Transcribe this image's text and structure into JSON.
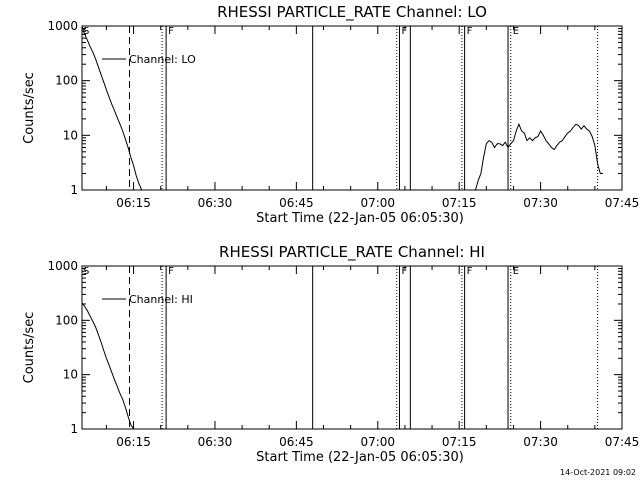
{
  "chart_data": [
    {
      "type": "line",
      "title": "RHESSI PARTICLE_RATE Channel: LO",
      "xlabel": "Start Time (22-Jan-05 06:05:30)",
      "ylabel": "Counts/sec",
      "x_ticks": [
        "06:15",
        "06:30",
        "06:45",
        "07:00",
        "07:15",
        "07:30",
        "07:45"
      ],
      "y_ticks": [
        "1",
        "10",
        "100",
        "1000"
      ],
      "y_scale": "log",
      "xlim": [
        "06:05:30",
        "07:45:00"
      ],
      "ylim": [
        1,
        1000
      ],
      "legend": "Channel: LO",
      "legend_position": "top-left",
      "series": [
        {
          "name": "Channel: LO",
          "segments": [
            {
              "x": [
                "06:05:30",
                "06:06:00",
                "06:06:30",
                "06:07:00",
                "06:07:30",
                "06:08:00",
                "06:08:30",
                "06:09:00",
                "06:09:30",
                "06:10:00",
                "06:10:30",
                "06:11:00",
                "06:11:30",
                "06:12:00",
                "06:12:30",
                "06:13:00",
                "06:13:30",
                "06:14:00",
                "06:14:30",
                "06:15:00",
                "06:15:30",
                "06:16:00",
                "06:16:30"
              ],
              "y": [
                1000,
                700,
                550,
                420,
                330,
                250,
                180,
                130,
                95,
                68,
                50,
                37,
                28,
                21,
                16,
                12,
                8.5,
                6,
                4,
                2.8,
                1.8,
                1.3,
                1
              ]
            },
            {
              "x": [
                "07:18:00",
                "07:18:30",
                "07:19:00",
                "07:19:30",
                "07:20:00",
                "07:20:30",
                "07:21:00",
                "07:21:30",
                "07:22:00",
                "07:22:30",
                "07:23:00",
                "07:23:30",
                "07:24:00",
                "07:24:30",
                "07:25:00",
                "07:25:30",
                "07:26:00",
                "07:26:30",
                "07:27:00",
                "07:27:30",
                "07:28:00",
                "07:28:30",
                "07:29:00",
                "07:29:30",
                "07:30:00",
                "07:30:30",
                "07:31:00",
                "07:31:30",
                "07:32:00",
                "07:32:30",
                "07:33:00",
                "07:33:30",
                "07:34:00",
                "07:34:30",
                "07:35:00",
                "07:35:30",
                "07:36:00",
                "07:36:30",
                "07:37:00",
                "07:37:30",
                "07:38:00",
                "07:38:30",
                "07:39:00",
                "07:39:30",
                "07:40:00",
                "07:40:30",
                "07:41:00",
                "07:41:30"
              ],
              "y": [
                1,
                1.5,
                2,
                4,
                7,
                8,
                7.5,
                6,
                7,
                7,
                6.5,
                7.5,
                6,
                7,
                8,
                12,
                16,
                12,
                11,
                8,
                9,
                8,
                9,
                9.5,
                12,
                10,
                8,
                7,
                6,
                5.5,
                6.5,
                7.5,
                8,
                9.5,
                11,
                12,
                14,
                16,
                15,
                13,
                15,
                13,
                12,
                9.5,
                6.5,
                3,
                2,
                2
              ]
            }
          ]
        }
      ],
      "markers": [
        {
          "type": "vline",
          "style": "dashed",
          "x": "06:14:15"
        },
        {
          "type": "vline",
          "style": "dotted",
          "x": "06:20:15"
        },
        {
          "type": "vline",
          "style": "solid",
          "x": "06:21:00",
          "label": "F"
        },
        {
          "type": "vline",
          "style": "solid",
          "x": "06:48:00"
        },
        {
          "type": "vline",
          "style": "dotted",
          "x": "07:03:30"
        },
        {
          "type": "vline",
          "style": "solid",
          "x": "07:04:00",
          "label": "F"
        },
        {
          "type": "vline",
          "style": "solid",
          "x": "07:06:00"
        },
        {
          "type": "vline",
          "style": "dotted",
          "x": "07:15:30"
        },
        {
          "type": "vline",
          "style": "solid",
          "x": "07:16:00",
          "label": "F"
        },
        {
          "type": "vline",
          "style": "solid",
          "x": "07:24:00"
        },
        {
          "type": "vline",
          "style": "dotted",
          "x": "07:24:30",
          "label": "E"
        },
        {
          "type": "vline",
          "style": "dotted",
          "x": "07:40:30"
        },
        {
          "type": "label",
          "x": "06:05:30",
          "text": "S"
        }
      ]
    },
    {
      "type": "line",
      "title": "RHESSI PARTICLE_RATE Channel: HI",
      "xlabel": "Start Time (22-Jan-05 06:05:30)",
      "ylabel": "Counts/sec",
      "x_ticks": [
        "06:15",
        "06:30",
        "06:45",
        "07:00",
        "07:15",
        "07:30",
        "07:45"
      ],
      "y_ticks": [
        "1",
        "10",
        "100",
        "1000"
      ],
      "y_scale": "log",
      "xlim": [
        "06:05:30",
        "07:45:00"
      ],
      "ylim": [
        1,
        1000
      ],
      "legend": "Channel: HI",
      "legend_position": "top-left",
      "series": [
        {
          "name": "Channel: HI",
          "segments": [
            {
              "x": [
                "06:05:30",
                "06:06:00",
                "06:06:30",
                "06:07:00",
                "06:07:30",
                "06:08:00",
                "06:08:30",
                "06:09:00",
                "06:09:30",
                "06:10:00",
                "06:10:30",
                "06:11:00",
                "06:11:30",
                "06:12:00",
                "06:12:30",
                "06:13:00",
                "06:13:30",
                "06:14:00",
                "06:14:30",
                "06:15:00"
              ],
              "y": [
                210,
                180,
                150,
                120,
                95,
                75,
                55,
                40,
                28,
                20,
                15,
                11,
                8,
                6,
                4.5,
                3.5,
                2.5,
                1.7,
                1.2,
                1
              ]
            }
          ]
        }
      ],
      "markers": [
        {
          "type": "vline",
          "style": "dashed",
          "x": "06:14:15"
        },
        {
          "type": "vline",
          "style": "dotted",
          "x": "06:20:15"
        },
        {
          "type": "vline",
          "style": "solid",
          "x": "06:21:00",
          "label": "F"
        },
        {
          "type": "vline",
          "style": "solid",
          "x": "06:48:00"
        },
        {
          "type": "vline",
          "style": "dotted",
          "x": "07:03:30"
        },
        {
          "type": "vline",
          "style": "solid",
          "x": "07:04:00",
          "label": "F"
        },
        {
          "type": "vline",
          "style": "solid",
          "x": "07:06:00"
        },
        {
          "type": "vline",
          "style": "dotted",
          "x": "07:15:30"
        },
        {
          "type": "vline",
          "style": "solid",
          "x": "07:16:00",
          "label": "F"
        },
        {
          "type": "vline",
          "style": "solid",
          "x": "07:24:00"
        },
        {
          "type": "vline",
          "style": "dotted",
          "x": "07:24:30",
          "label": "E"
        },
        {
          "type": "vline",
          "style": "dotted",
          "x": "07:40:30"
        },
        {
          "type": "label",
          "x": "06:05:30",
          "text": "S"
        }
      ]
    }
  ],
  "footer": {
    "timestamp": "14-Oct-2021 09:02"
  }
}
